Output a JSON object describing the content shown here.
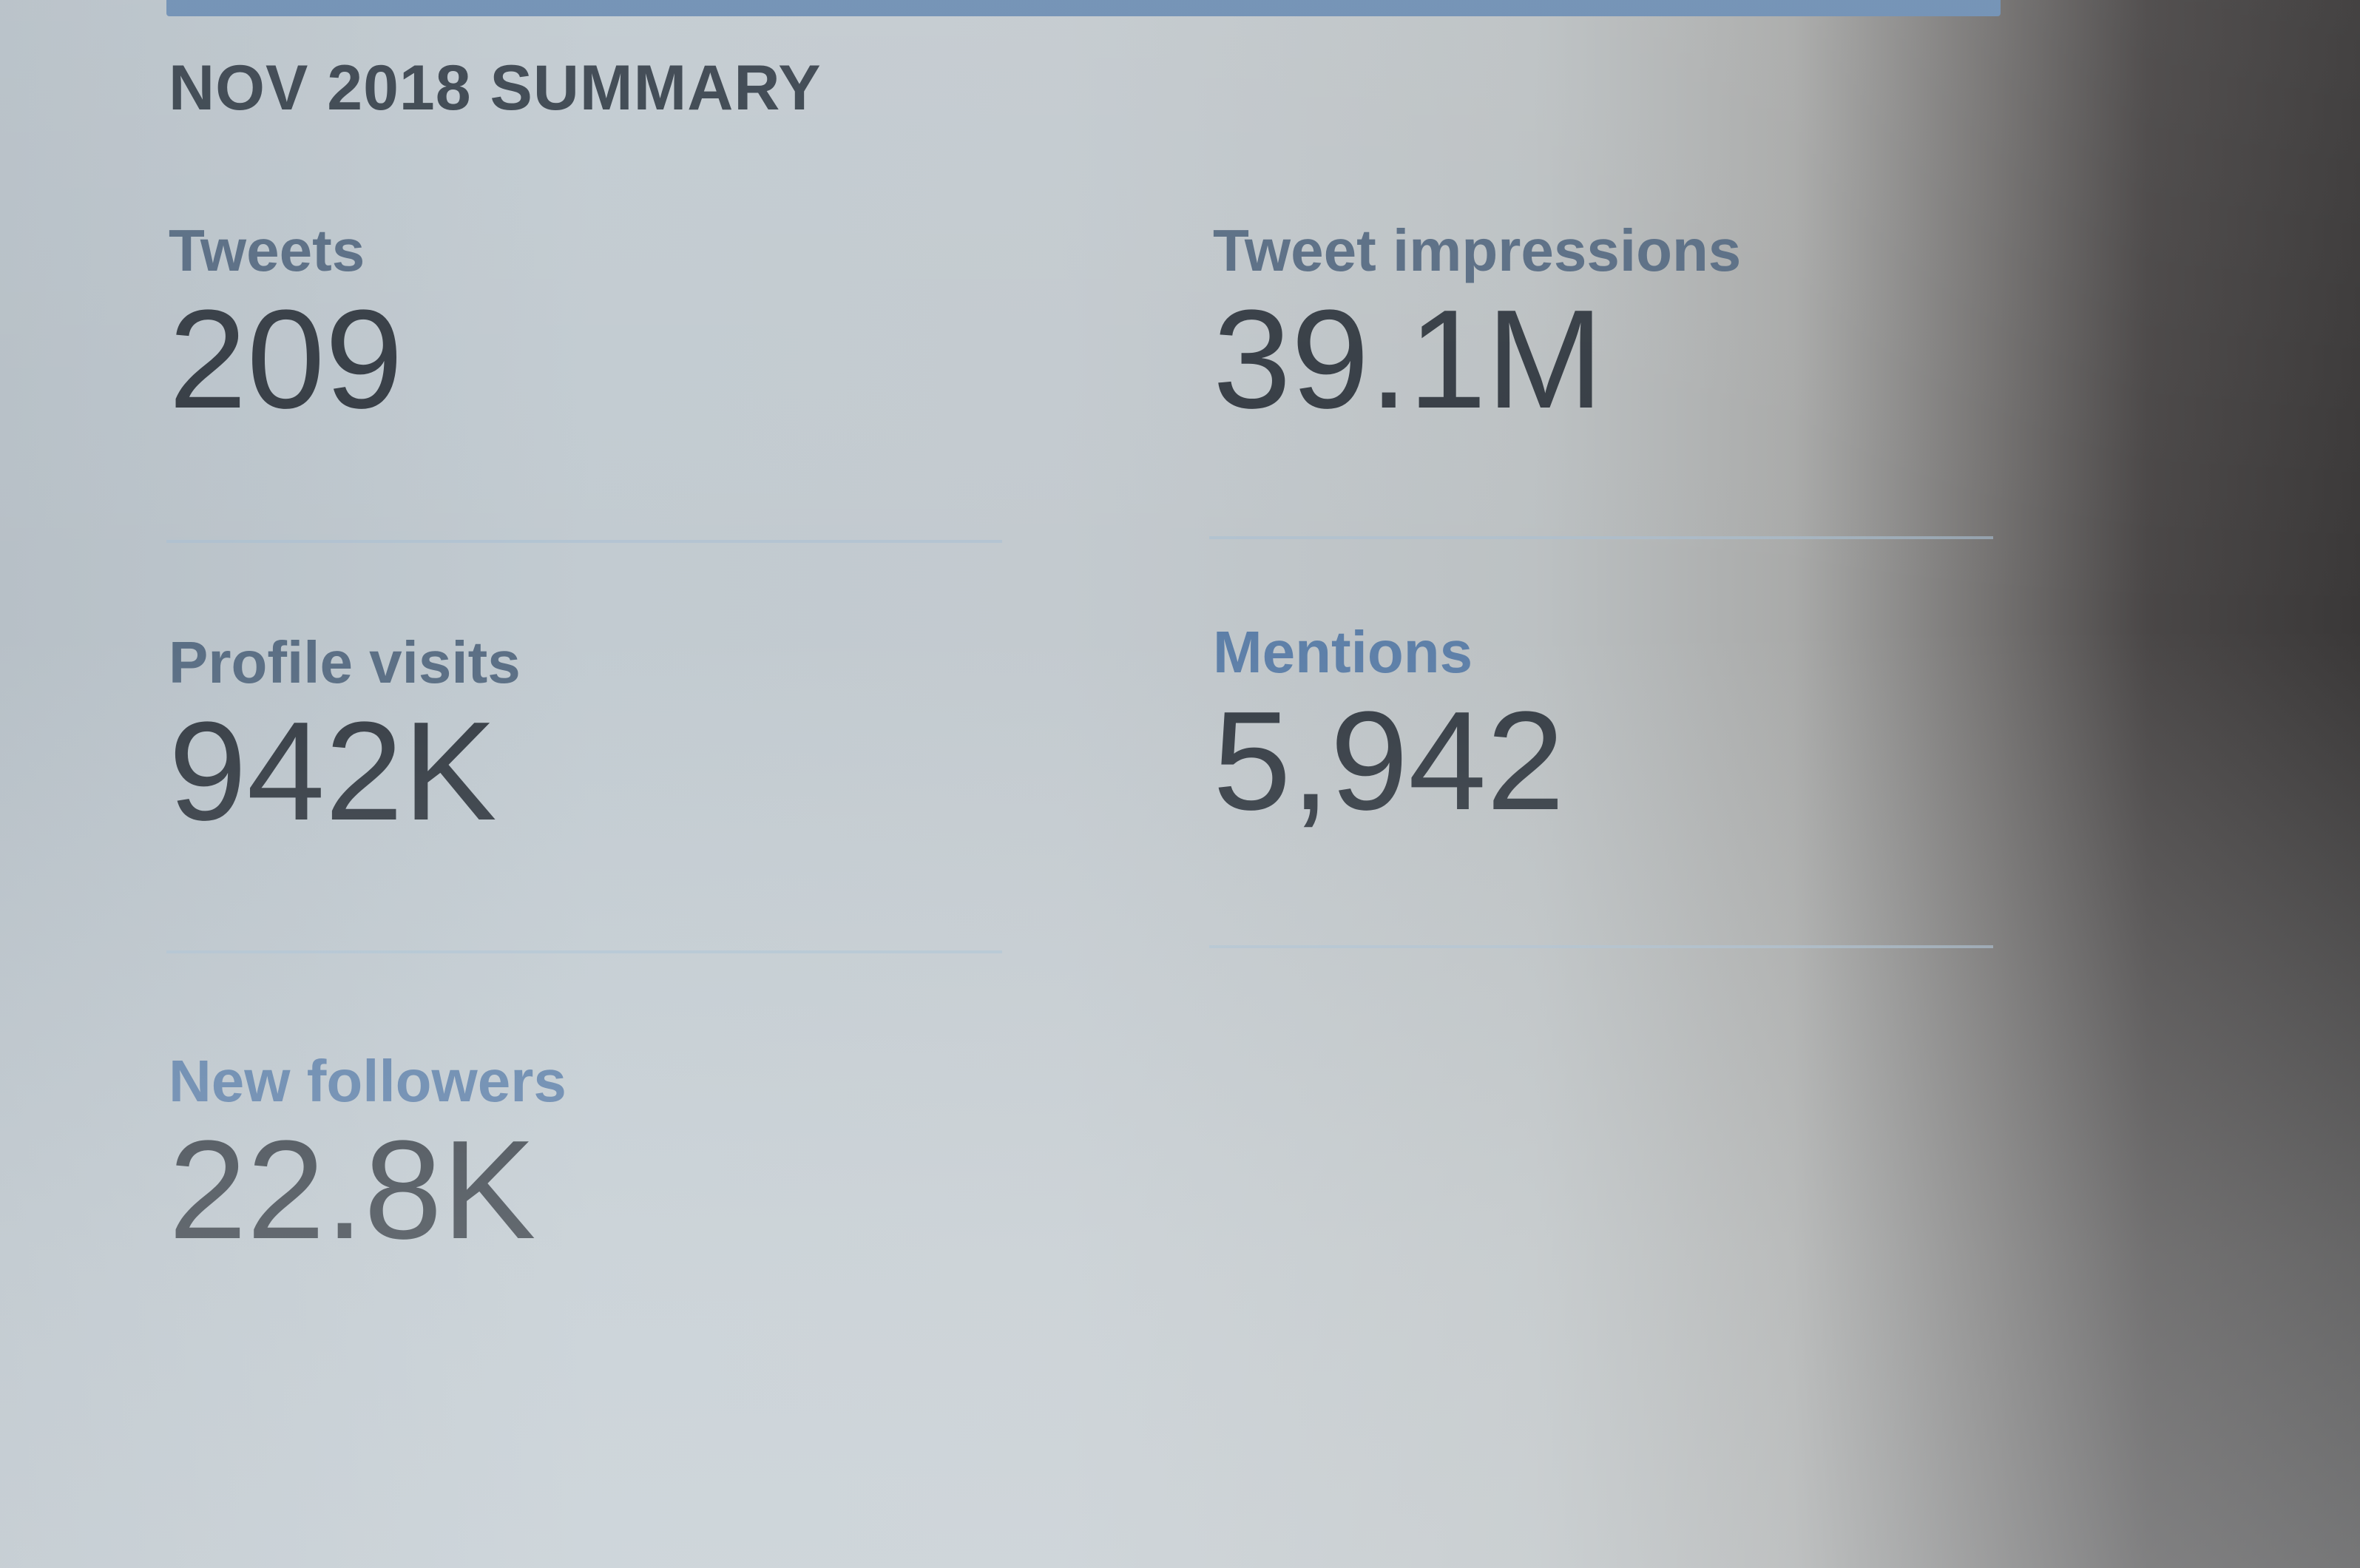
{
  "summary": {
    "title": "NOV 2018 SUMMARY"
  },
  "metrics": [
    {
      "label": "Tweets",
      "value": "209"
    },
    {
      "label": "Tweet impressions",
      "value": "39.1M"
    },
    {
      "label": "Profile visits",
      "value": "942K"
    },
    {
      "label": "Mentions",
      "value": "5,942"
    },
    {
      "label": "New followers",
      "value": "22.8K"
    }
  ],
  "colors": {
    "accent_bar": "#6f8fb3",
    "label_text": "#5a6e84",
    "value_text": "#363d45"
  }
}
